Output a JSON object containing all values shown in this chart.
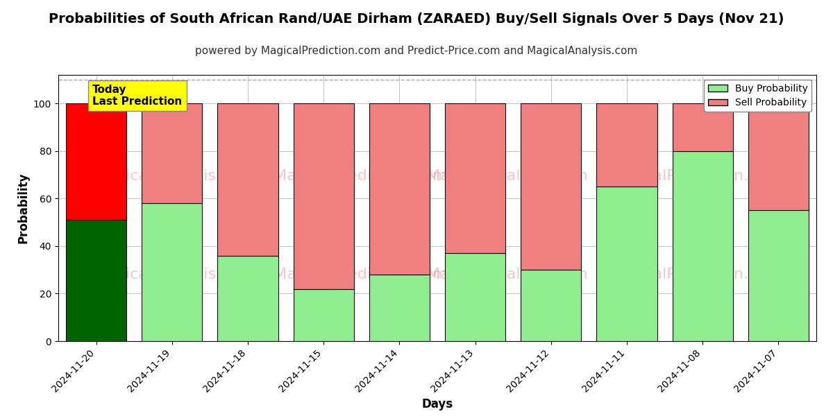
{
  "title": "Probabilities of South African Rand/UAE Dirham (ZARAED) Buy/Sell Signals Over 5 Days (Nov 21)",
  "subtitle": "powered by MagicalPrediction.com and Predict-Price.com and MagicalAnalysis.com",
  "xlabel": "Days",
  "ylabel": "Probability",
  "categories": [
    "2024-11-20",
    "2024-11-19",
    "2024-11-18",
    "2024-11-15",
    "2024-11-14",
    "2024-11-13",
    "2024-11-12",
    "2024-11-11",
    "2024-11-08",
    "2024-11-07"
  ],
  "buy_values": [
    51,
    58,
    36,
    22,
    28,
    37,
    30,
    65,
    80,
    55
  ],
  "sell_values": [
    49,
    42,
    64,
    78,
    72,
    63,
    70,
    35,
    20,
    45
  ],
  "today_bar_buy_color": "#006400",
  "today_bar_sell_color": "#FF0000",
  "other_bar_buy_color": "#90EE90",
  "other_bar_sell_color": "#F08080",
  "bar_edge_color": "#000000",
  "ylim": [
    0,
    112
  ],
  "yticks": [
    0,
    20,
    40,
    60,
    80,
    100
  ],
  "dashed_line_y": 110,
  "watermark_lines": [
    "MagicalAnalysis.com    MagicalPrediction.com",
    "MagicalAnalysis.com    MagicalPrediction.com"
  ],
  "watermark_color": "#F08080",
  "watermark_alpha": 0.45,
  "background_color": "#ffffff",
  "grid_color": "#aaaaaa",
  "today_label_text": "Today\nLast Prediction",
  "today_label_bg": "#FFFF00",
  "today_label_fontsize": 11,
  "legend_buy_label": "Buy Probability",
  "legend_sell_label": "Sell Probability",
  "title_fontsize": 14,
  "subtitle_fontsize": 11,
  "axis_label_fontsize": 12,
  "tick_fontsize": 10,
  "bar_width": 0.8
}
